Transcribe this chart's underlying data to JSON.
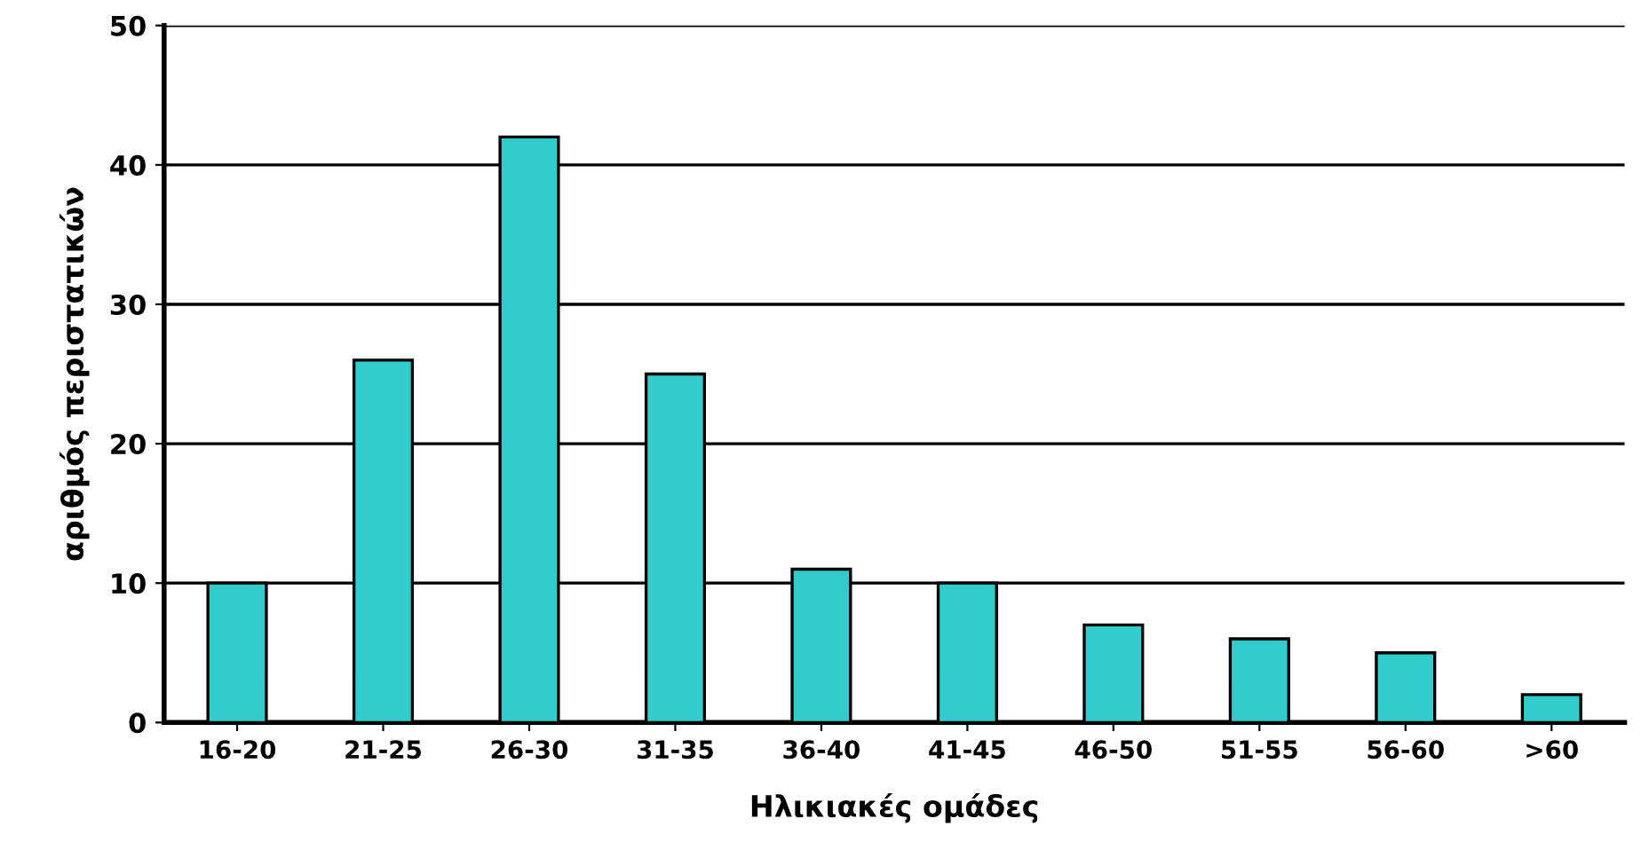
{
  "chart_data": {
    "type": "bar",
    "xlabel": "Ηλικιακές ομάδες",
    "ylabel": "αριθμός περιστατικών",
    "categories": [
      "16-20",
      "21-25",
      "26-30",
      "31-35",
      "36-40",
      "41-45",
      "46-50",
      "51-55",
      "56-60",
      ">60"
    ],
    "values": [
      10,
      26,
      42,
      25,
      11,
      10,
      7,
      6,
      5,
      2
    ],
    "color": "#33cccc",
    "ylim": [
      0,
      50
    ],
    "yticks": [
      0,
      10,
      20,
      30,
      40,
      50
    ],
    "grid": "y"
  }
}
